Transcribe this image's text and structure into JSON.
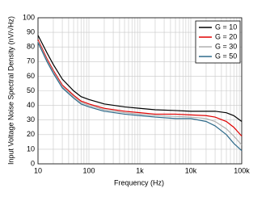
{
  "chart_data": {
    "type": "line",
    "xlabel": "Frequency (Hz)",
    "ylabel": "Input Voltage Noise Spectral Density (nV/√Hz)",
    "x": [
      10,
      15,
      20,
      30,
      50,
      70,
      100,
      200,
      500,
      1000,
      2000,
      5000,
      10000,
      20000,
      30000,
      50000,
      70000,
      100000
    ],
    "series": [
      {
        "name": "G = 10",
        "color": "#000000",
        "values": [
          88,
          76,
          68,
          58,
          50,
          46,
          44,
          41,
          39,
          38,
          37,
          36.5,
          36,
          36,
          36,
          35,
          33,
          29
        ]
      },
      {
        "name": "G = 20",
        "color": "#e00000",
        "values": [
          85,
          72,
          64,
          54,
          47,
          43,
          41,
          38,
          36,
          35,
          34,
          34,
          33.5,
          33,
          32,
          29,
          25,
          19
        ]
      },
      {
        "name": "G = 30",
        "color": "#b0b0b0",
        "values": [
          84,
          71,
          63,
          53,
          46,
          42,
          40,
          37,
          35,
          34,
          33,
          32.5,
          32,
          31,
          29,
          24,
          19,
          13
        ]
      },
      {
        "name": "G = 50",
        "color": "#2e6a8a",
        "values": [
          83,
          70,
          62,
          52,
          45,
          41,
          39,
          36,
          34,
          33,
          32,
          31,
          31,
          29,
          26,
          20,
          14,
          9
        ]
      }
    ],
    "xlim": [
      10,
      100000
    ],
    "xscale": "log",
    "xticks": [
      10,
      100,
      {
        "value": 1000,
        "label": "1k"
      },
      {
        "value": 10000,
        "label": "10k"
      },
      {
        "value": 100000,
        "label": "100k"
      }
    ],
    "ylim": [
      0,
      100
    ],
    "yticks": [
      0,
      10,
      20,
      30,
      40,
      50,
      60,
      70,
      80,
      90,
      100
    ],
    "grid": true,
    "legend": "upper right"
  }
}
